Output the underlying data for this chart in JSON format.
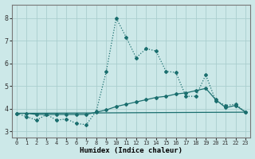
{
  "xlabel": "Humidex (Indice chaleur)",
  "background_color": "#cce8e8",
  "grid_color": "#aacece",
  "line_color": "#1a6e6e",
  "xlim": [
    -0.5,
    23.5
  ],
  "ylim": [
    2.75,
    8.6
  ],
  "yticks": [
    3,
    4,
    5,
    6,
    7,
    8
  ],
  "xticks": [
    0,
    1,
    2,
    3,
    4,
    5,
    6,
    7,
    8,
    9,
    10,
    11,
    12,
    13,
    14,
    15,
    16,
    17,
    18,
    19,
    20,
    21,
    22,
    23
  ],
  "line1_x": [
    0,
    1,
    2,
    3,
    4,
    5,
    6,
    7,
    8,
    9,
    10,
    11,
    12,
    13,
    14,
    15,
    16,
    17,
    18,
    19,
    20,
    21,
    22,
    23
  ],
  "line1_y": [
    3.8,
    3.65,
    3.5,
    3.75,
    3.5,
    3.55,
    3.35,
    3.3,
    3.9,
    5.65,
    8.0,
    7.15,
    6.25,
    6.65,
    6.55,
    5.65,
    5.6,
    4.55,
    4.55,
    5.5,
    4.35,
    4.15,
    4.2,
    3.85
  ],
  "line2_x": [
    0,
    23
  ],
  "line2_y": [
    3.8,
    3.85
  ],
  "line3_x": [
    0,
    1,
    2,
    3,
    4,
    5,
    6,
    7,
    8,
    9,
    10,
    11,
    12,
    13,
    14,
    15,
    16,
    17,
    18,
    19,
    20,
    21,
    22,
    23
  ],
  "line3_y": [
    3.8,
    3.8,
    3.75,
    3.75,
    3.75,
    3.75,
    3.75,
    3.75,
    3.85,
    3.95,
    4.1,
    4.2,
    4.3,
    4.4,
    4.5,
    4.55,
    4.65,
    4.7,
    4.8,
    4.9,
    4.4,
    4.05,
    4.15,
    3.85
  ]
}
